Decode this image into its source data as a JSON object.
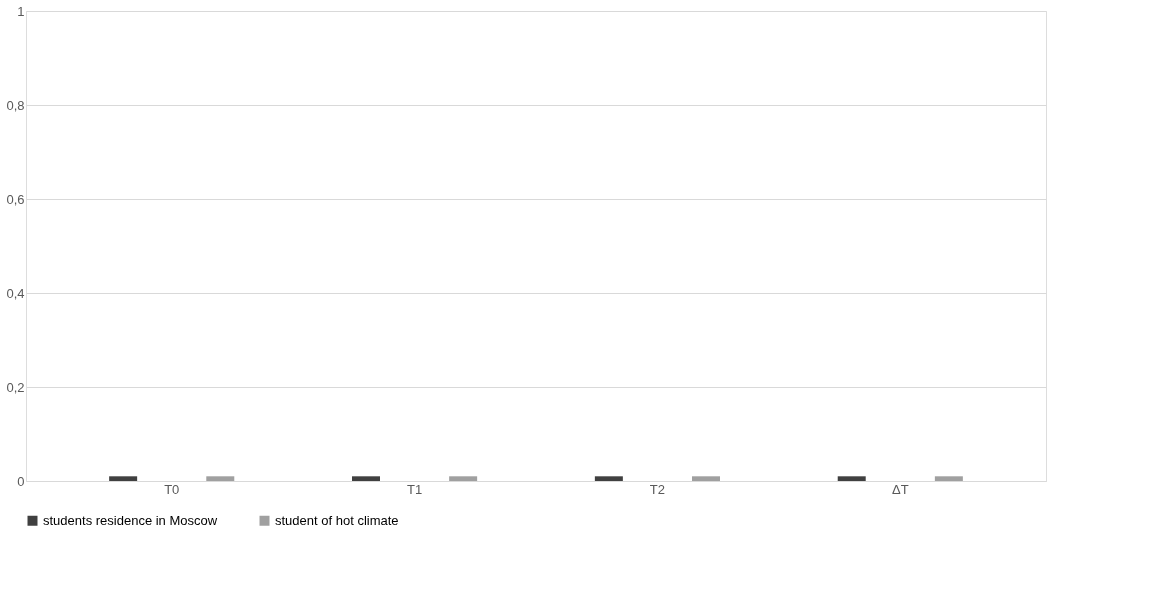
{
  "chart_data": {
    "type": "bar",
    "categories": [
      "T0",
      "T1",
      "T2",
      "ΔT"
    ],
    "series": [
      {
        "name": "students residence in Moscow",
        "color": "#404040",
        "values": [
          0.01,
          0.01,
          0.01,
          0.01
        ]
      },
      {
        "name": "student of hot climate",
        "color": "#a0a0a0",
        "values": [
          0.01,
          0.01,
          0.01,
          0.01
        ]
      }
    ],
    "ylim": [
      0,
      1
    ],
    "yticks": [
      0,
      {
        "value": 0.2,
        "label": "0,2"
      },
      {
        "value": 0.4,
        "label": "0,4"
      },
      {
        "value": 0.6,
        "label": "0,6"
      },
      {
        "value": 0.8,
        "label": "0,8"
      },
      1
    ],
    "grid": "y",
    "legend": "bottom"
  }
}
